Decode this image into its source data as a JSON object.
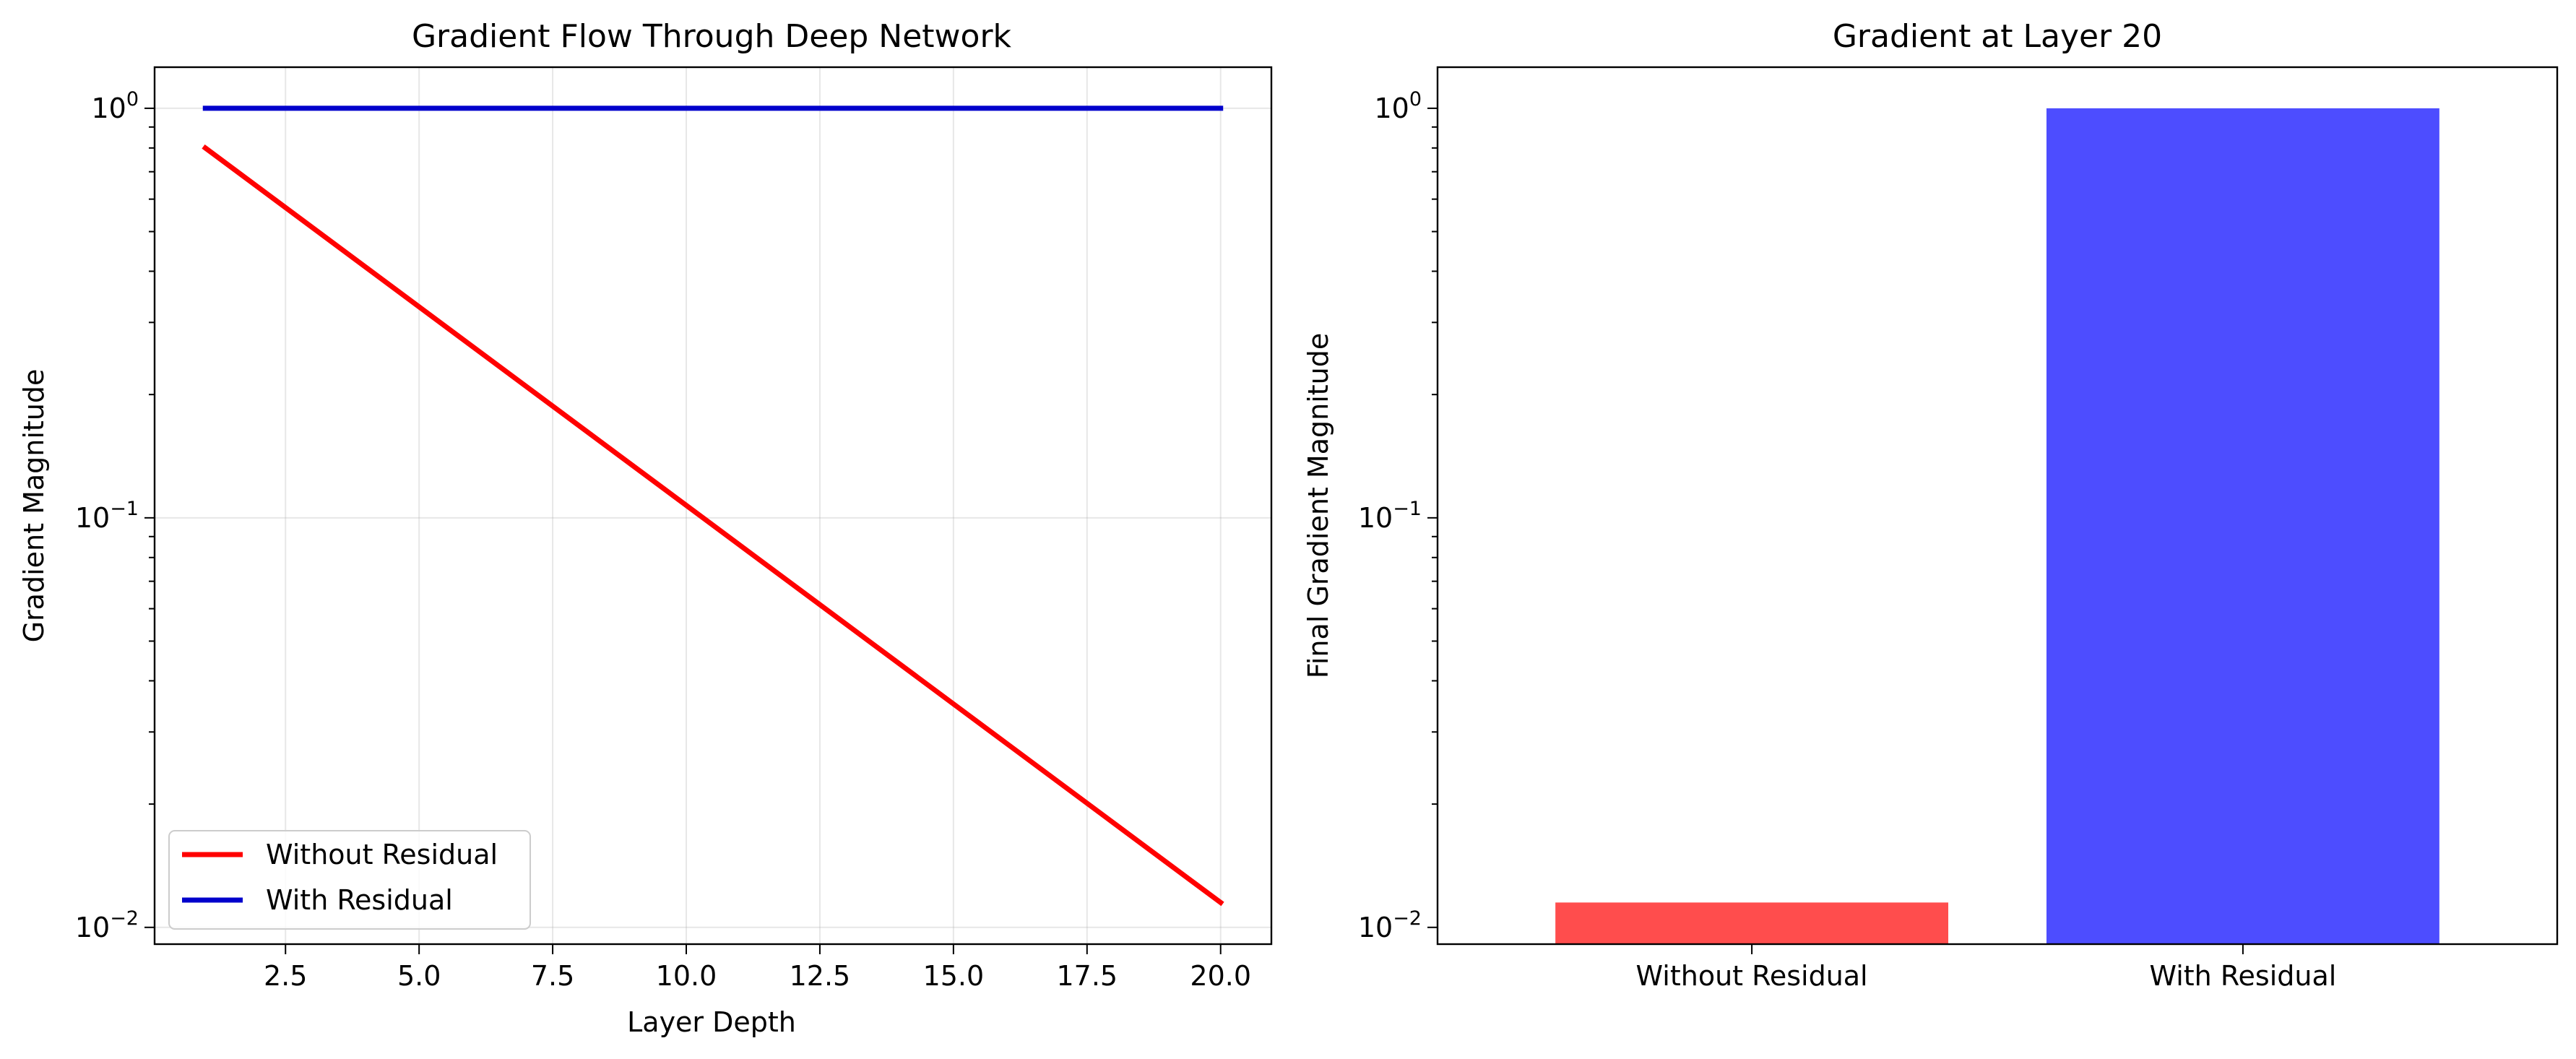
{
  "chart_data": [
    {
      "type": "line",
      "title": "Gradient Flow Through Deep Network",
      "xlabel": "Layer Depth",
      "ylabel": "Gradient Magnitude",
      "yscale": "log",
      "xlim": [
        0.05,
        20.95
      ],
      "ylim": [
        0.0091,
        1.26
      ],
      "xticks": [
        2.5,
        5.0,
        7.5,
        10.0,
        12.5,
        15.0,
        17.5,
        20.0
      ],
      "xtick_labels": [
        "2.5",
        "5.0",
        "7.5",
        "10.0",
        "12.5",
        "15.0",
        "17.5",
        "20.0"
      ],
      "yticks": [
        0.01,
        0.1,
        1
      ],
      "ytick_labels": [
        {
          "base": "10",
          "exp": "−2"
        },
        {
          "base": "10",
          "exp": "−1"
        },
        {
          "base": "10",
          "exp": "0"
        }
      ],
      "grid": true,
      "legend_position": "lower-left",
      "series": [
        {
          "name": "Without Residual",
          "color": "#ff0000",
          "x": [
            1,
            20
          ],
          "y": [
            0.8,
            0.0115
          ]
        },
        {
          "name": "With Residual",
          "color": "#0000cc",
          "x": [
            1,
            20
          ],
          "y": [
            1.0,
            1.0
          ]
        }
      ]
    },
    {
      "type": "bar",
      "title": "Gradient at Layer 20",
      "xlabel": "",
      "ylabel": "Final Gradient Magnitude",
      "yscale": "log",
      "ylim": [
        0.0091,
        1.26
      ],
      "yticks": [
        0.01,
        0.1,
        1
      ],
      "ytick_labels": [
        {
          "base": "10",
          "exp": "−2"
        },
        {
          "base": "10",
          "exp": "−1"
        },
        {
          "base": "10",
          "exp": "0"
        }
      ],
      "grid": false,
      "categories": [
        "Without Residual",
        "With Residual"
      ],
      "values": [
        0.0115,
        1.0
      ],
      "colors": [
        "#ff4d4d",
        "#4d4dff"
      ]
    }
  ]
}
